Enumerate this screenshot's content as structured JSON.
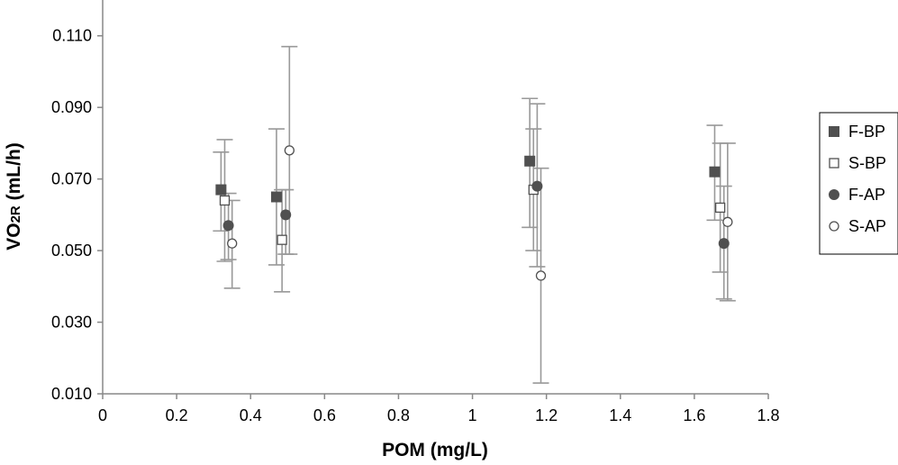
{
  "chart_data": {
    "type": "scatter",
    "title": "",
    "xlabel": "POM (mg/L)",
    "ylabel_main": "VO",
    "ylabel_sub": "2R",
    "ylabel_unit": " (mL/h)",
    "xlim": [
      0,
      1.8
    ],
    "ylim": [
      0.01,
      0.12
    ],
    "x_ticks": [
      0,
      0.2,
      0.4,
      0.6,
      0.8,
      1,
      1.2,
      1.4,
      1.6,
      1.8
    ],
    "x_tick_labels": [
      "0",
      "0.2",
      "0.4",
      "0.6",
      "0.8",
      "1",
      "1.2",
      "1.4",
      "1.6",
      "1.8"
    ],
    "y_ticks": [
      0.01,
      0.03,
      0.05,
      0.07,
      0.09,
      0.11
    ],
    "y_tick_labels": [
      "0.010",
      "0.030",
      "0.050",
      "0.070",
      "0.090",
      "0.110"
    ],
    "grid": false,
    "legend_position": "right",
    "colors": {
      "marker": "#505050",
      "errorbar": "#999999",
      "axis": "#888888"
    },
    "series": [
      {
        "name": "F-BP",
        "marker": "filled-square",
        "x": [
          0.32,
          0.47,
          1.155,
          1.655
        ],
        "y": [
          0.067,
          0.065,
          0.075,
          0.072
        ],
        "err_low": [
          0.0555,
          0.046,
          0.0565,
          0.0585
        ],
        "err_high": [
          0.0775,
          0.084,
          0.0925,
          0.085
        ]
      },
      {
        "name": "S-BP",
        "marker": "open-square",
        "x": [
          0.33,
          0.485,
          1.165,
          1.67
        ],
        "y": [
          0.064,
          0.053,
          0.067,
          0.062
        ],
        "err_low": [
          0.047,
          0.0385,
          0.05,
          0.044
        ],
        "err_high": [
          0.081,
          0.067,
          0.084,
          0.08
        ]
      },
      {
        "name": "F-AP",
        "marker": "filled-circle",
        "x": [
          0.34,
          0.495,
          1.175,
          1.68
        ],
        "y": [
          0.057,
          0.06,
          0.068,
          0.052
        ],
        "err_low": [
          0.0475,
          0.049,
          0.0455,
          0.0365
        ],
        "err_high": [
          0.066,
          0.067,
          0.091,
          0.068
        ]
      },
      {
        "name": "S-AP",
        "marker": "open-circle",
        "x": [
          0.35,
          0.505,
          1.185,
          1.69
        ],
        "y": [
          0.052,
          0.078,
          0.043,
          0.058
        ],
        "err_low": [
          0.0395,
          0.049,
          0.013,
          0.036
        ],
        "err_high": [
          0.064,
          0.107,
          0.073,
          0.08
        ]
      }
    ]
  }
}
